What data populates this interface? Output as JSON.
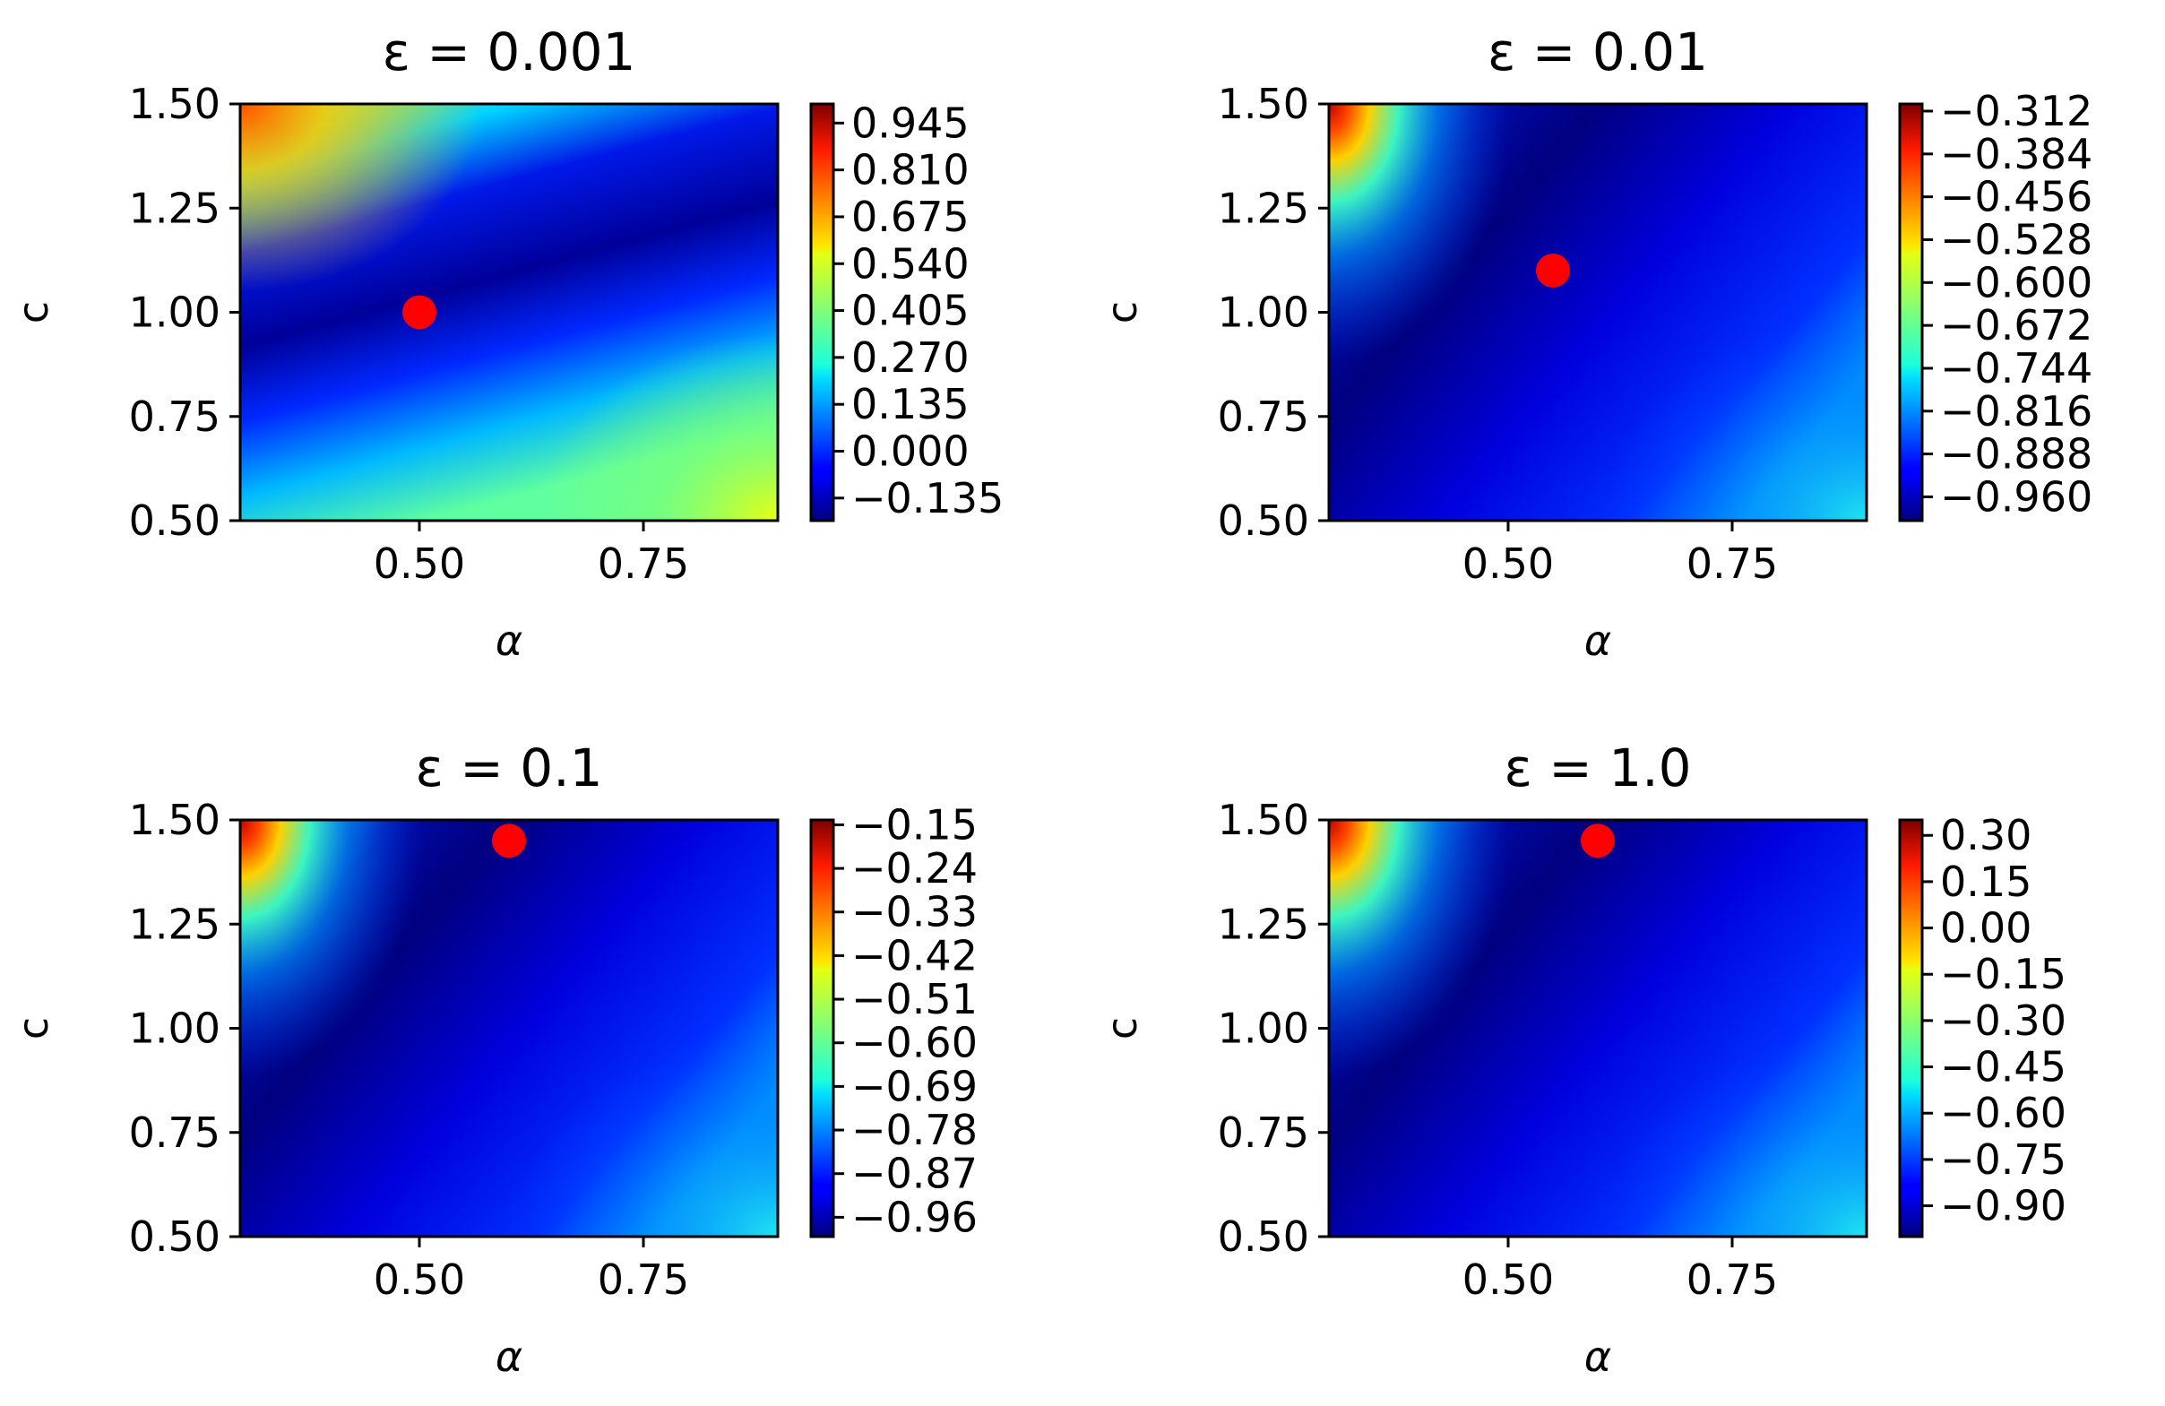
{
  "chart_data": [
    {
      "type": "heatmap",
      "title": "ε = 0.001",
      "xlabel": "α",
      "ylabel": "c",
      "xlim": [
        0.3,
        0.9
      ],
      "ylim": [
        0.5,
        1.5
      ],
      "xticks": [
        "0.50",
        "0.75"
      ],
      "xtick_values": [
        0.5,
        0.75
      ],
      "yticks": [
        "0.50",
        "0.75",
        "1.00",
        "1.25",
        "1.50"
      ],
      "ytick_values": [
        0.5,
        0.75,
        1.0,
        1.25,
        1.5
      ],
      "colorbar_ticks": [
        "0.945",
        "0.810",
        "0.675",
        "0.540",
        "0.405",
        "0.270",
        "0.135",
        "0.000",
        "−0.135"
      ],
      "colorbar_range": [
        -0.2,
        1.0
      ],
      "marker": {
        "x": 0.5,
        "y": 1.0,
        "color": "#ff0000"
      },
      "surface": "valley"
    },
    {
      "type": "heatmap",
      "title": "ε = 0.01",
      "xlabel": "α",
      "ylabel": "c",
      "xlim": [
        0.3,
        0.9
      ],
      "ylim": [
        0.5,
        1.5
      ],
      "xticks": [
        "0.50",
        "0.75"
      ],
      "xtick_values": [
        0.5,
        0.75
      ],
      "yticks": [
        "0.50",
        "0.75",
        "1.00",
        "1.25",
        "1.50"
      ],
      "ytick_values": [
        0.5,
        0.75,
        1.0,
        1.25,
        1.5
      ],
      "colorbar_ticks": [
        "−0.312",
        "−0.384",
        "−0.456",
        "−0.528",
        "−0.600",
        "−0.672",
        "−0.744",
        "−0.816",
        "−0.888",
        "−0.960"
      ],
      "colorbar_range": [
        -1.0,
        -0.3
      ],
      "marker": {
        "x": 0.55,
        "y": 1.1,
        "color": "#ff0000"
      },
      "surface": "corner"
    },
    {
      "type": "heatmap",
      "title": "ε = 0.1",
      "xlabel": "α",
      "ylabel": "c",
      "xlim": [
        0.3,
        0.9
      ],
      "ylim": [
        0.5,
        1.5
      ],
      "xticks": [
        "0.50",
        "0.75"
      ],
      "xtick_values": [
        0.5,
        0.75
      ],
      "yticks": [
        "0.50",
        "0.75",
        "1.00",
        "1.25",
        "1.50"
      ],
      "ytick_values": [
        0.5,
        0.75,
        1.0,
        1.25,
        1.5
      ],
      "colorbar_ticks": [
        "−0.15",
        "−0.24",
        "−0.33",
        "−0.42",
        "−0.51",
        "−0.60",
        "−0.69",
        "−0.78",
        "−0.87",
        "−0.96"
      ],
      "colorbar_range": [
        -1.0,
        -0.14
      ],
      "marker": {
        "x": 0.6,
        "y": 1.45,
        "color": "#ff0000"
      },
      "surface": "corner"
    },
    {
      "type": "heatmap",
      "title": "ε = 1.0",
      "xlabel": "α",
      "ylabel": "c",
      "xlim": [
        0.3,
        0.9
      ],
      "ylim": [
        0.5,
        1.5
      ],
      "xticks": [
        "0.50",
        "0.75"
      ],
      "xtick_values": [
        0.5,
        0.75
      ],
      "yticks": [
        "0.50",
        "0.75",
        "1.00",
        "1.25",
        "1.50"
      ],
      "ytick_values": [
        0.5,
        0.75,
        1.0,
        1.25,
        1.5
      ],
      "colorbar_ticks": [
        "0.30",
        "0.15",
        "0.00",
        "−0.15",
        "−0.30",
        "−0.45",
        "−0.60",
        "−0.75",
        "−0.90"
      ],
      "colorbar_range": [
        -1.0,
        0.35
      ],
      "marker": {
        "x": 0.6,
        "y": 1.45,
        "color": "#ff0000"
      },
      "surface": "corner"
    }
  ]
}
